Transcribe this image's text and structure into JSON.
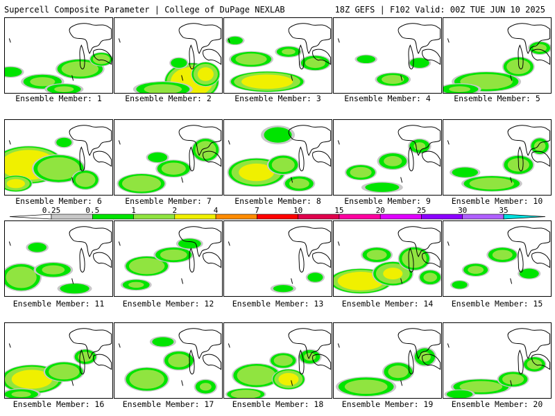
{
  "header": {
    "left": "Supercell Composite Parameter | College of DuPage NEXLAB",
    "right": "18Z GEFS | F102 Valid: 00Z TUE JUN 10 2025"
  },
  "members": [
    {
      "label": "Ensemble Member: 1",
      "sig": [
        [
          0.05,
          0.72,
          14,
          6,
          0.9
        ],
        [
          0.35,
          0.85,
          22,
          8,
          1.1
        ],
        [
          0.7,
          0.68,
          24,
          10,
          1.6
        ],
        [
          0.9,
          0.55,
          12,
          7,
          1.4
        ],
        [
          0.55,
          0.95,
          20,
          6,
          1.0
        ]
      ]
    },
    {
      "label": "Ensemble Member: 2",
      "sig": [
        [
          0.72,
          0.85,
          26,
          18,
          3.6
        ],
        [
          0.45,
          0.95,
          30,
          8,
          1.2
        ],
        [
          0.85,
          0.75,
          14,
          12,
          2.2
        ],
        [
          0.6,
          0.6,
          10,
          6,
          0.9
        ]
      ]
    },
    {
      "label": "Ensemble Member: 3",
      "sig": [
        [
          0.4,
          0.85,
          36,
          10,
          2.8
        ],
        [
          0.25,
          0.55,
          22,
          8,
          1.4
        ],
        [
          0.6,
          0.45,
          14,
          6,
          1.0
        ],
        [
          0.85,
          0.6,
          16,
          8,
          1.2
        ],
        [
          0.1,
          0.3,
          10,
          5,
          0.8
        ]
      ]
    },
    {
      "label": "Ensemble Member: 4",
      "sig": [
        [
          0.55,
          0.82,
          18,
          7,
          1.2
        ],
        [
          0.3,
          0.55,
          12,
          5,
          0.8
        ],
        [
          0.8,
          0.6,
          12,
          6,
          0.9
        ]
      ]
    },
    {
      "label": "Ensemble Member: 5",
      "sig": [
        [
          0.4,
          0.85,
          34,
          10,
          1.6
        ],
        [
          0.7,
          0.65,
          16,
          10,
          1.5
        ],
        [
          0.9,
          0.4,
          12,
          7,
          1.1
        ],
        [
          0.15,
          0.95,
          22,
          6,
          1.0
        ]
      ]
    },
    {
      "label": "Ensemble Member: 6",
      "sig": [
        [
          0.22,
          0.6,
          34,
          18,
          3.8
        ],
        [
          0.5,
          0.65,
          26,
          14,
          1.8
        ],
        [
          0.75,
          0.8,
          14,
          10,
          1.4
        ],
        [
          0.1,
          0.85,
          16,
          8,
          2.2
        ],
        [
          0.55,
          0.3,
          10,
          6,
          0.8
        ]
      ]
    },
    {
      "label": "Ensemble Member: 7",
      "sig": [
        [
          0.25,
          0.85,
          24,
          10,
          1.8
        ],
        [
          0.55,
          0.65,
          18,
          9,
          1.3
        ],
        [
          0.85,
          0.4,
          14,
          12,
          1.5
        ],
        [
          0.4,
          0.5,
          12,
          6,
          0.9
        ]
      ]
    },
    {
      "label": "Ensemble Member: 8",
      "sig": [
        [
          0.3,
          0.7,
          28,
          14,
          2.4
        ],
        [
          0.55,
          0.6,
          16,
          10,
          1.4
        ],
        [
          0.7,
          0.85,
          16,
          8,
          1.2
        ],
        [
          0.5,
          0.2,
          18,
          10,
          0.8
        ]
      ]
    },
    {
      "label": "Ensemble Member: 9",
      "sig": [
        [
          0.25,
          0.7,
          16,
          8,
          1.3
        ],
        [
          0.55,
          0.55,
          16,
          9,
          1.1
        ],
        [
          0.8,
          0.35,
          12,
          8,
          1.0
        ],
        [
          0.45,
          0.9,
          22,
          6,
          0.8
        ]
      ]
    },
    {
      "label": "Ensemble Member: 10",
      "sig": [
        [
          0.45,
          0.85,
          30,
          8,
          1.5
        ],
        [
          0.7,
          0.6,
          16,
          10,
          1.3
        ],
        [
          0.9,
          0.35,
          10,
          9,
          1.1
        ],
        [
          0.2,
          0.7,
          16,
          6,
          0.9
        ]
      ]
    },
    {
      "label": "Ensemble Member: 11",
      "sig": [
        [
          0.15,
          0.75,
          20,
          14,
          1.6
        ],
        [
          0.45,
          0.65,
          20,
          8,
          1.1
        ],
        [
          0.65,
          0.9,
          18,
          6,
          0.9
        ],
        [
          0.3,
          0.35,
          12,
          6,
          0.8
        ]
      ]
    },
    {
      "label": "Ensemble Member: 12",
      "sig": [
        [
          0.3,
          0.6,
          22,
          10,
          1.8
        ],
        [
          0.55,
          0.45,
          20,
          8,
          1.3
        ],
        [
          0.2,
          0.85,
          16,
          6,
          1.0
        ],
        [
          0.7,
          0.3,
          14,
          6,
          0.9
        ]
      ]
    },
    {
      "label": "Ensemble Member: 13",
      "sig": [
        [
          0.55,
          0.9,
          14,
          5,
          0.7
        ],
        [
          0.85,
          0.75,
          10,
          6,
          0.8
        ]
      ]
    },
    {
      "label": "Ensemble Member: 14",
      "sig": [
        [
          0.25,
          0.8,
          30,
          12,
          3.2
        ],
        [
          0.55,
          0.7,
          20,
          12,
          2.0
        ],
        [
          0.75,
          0.5,
          16,
          12,
          1.6
        ],
        [
          0.4,
          0.45,
          16,
          8,
          1.2
        ],
        [
          0.9,
          0.75,
          12,
          8,
          1.1
        ]
      ]
    },
    {
      "label": "Ensemble Member: 15",
      "sig": [
        [
          0.55,
          0.45,
          16,
          8,
          1.2
        ],
        [
          0.3,
          0.65,
          14,
          7,
          1.1
        ],
        [
          0.15,
          0.85,
          10,
          5,
          0.8
        ],
        [
          0.8,
          0.7,
          12,
          6,
          0.9
        ]
      ]
    },
    {
      "label": "Ensemble Member: 16",
      "sig": [
        [
          0.25,
          0.75,
          30,
          14,
          2.6
        ],
        [
          0.55,
          0.65,
          20,
          10,
          1.6
        ],
        [
          0.75,
          0.45,
          12,
          8,
          1.2
        ],
        [
          0.15,
          0.95,
          20,
          6,
          1.0
        ]
      ]
    },
    {
      "label": "Ensemble Member: 17",
      "sig": [
        [
          0.3,
          0.75,
          22,
          12,
          1.7
        ],
        [
          0.6,
          0.5,
          16,
          10,
          1.3
        ],
        [
          0.85,
          0.85,
          12,
          8,
          1.0
        ],
        [
          0.45,
          0.25,
          14,
          6,
          0.8
        ]
      ]
    },
    {
      "label": "Ensemble Member: 18",
      "sig": [
        [
          0.3,
          0.7,
          24,
          12,
          1.8
        ],
        [
          0.6,
          0.75,
          16,
          10,
          2.4
        ],
        [
          0.55,
          0.5,
          14,
          8,
          1.3
        ],
        [
          0.2,
          0.95,
          20,
          6,
          1.5
        ],
        [
          0.8,
          0.45,
          12,
          8,
          1.0
        ]
      ]
    },
    {
      "label": "Ensemble Member: 19",
      "sig": [
        [
          0.3,
          0.85,
          30,
          10,
          1.4
        ],
        [
          0.6,
          0.65,
          16,
          10,
          1.2
        ],
        [
          0.85,
          0.45,
          12,
          10,
          1.0
        ]
      ]
    },
    {
      "label": "Ensemble Member: 20",
      "sig": [
        [
          0.35,
          0.85,
          30,
          8,
          1.4
        ],
        [
          0.65,
          0.75,
          16,
          8,
          1.3
        ],
        [
          0.85,
          0.55,
          12,
          8,
          1.2
        ],
        [
          0.15,
          0.95,
          16,
          5,
          0.9
        ]
      ]
    }
  ],
  "colorbar": {
    "tick_labels": [
      "0.25",
      "0.5",
      "1",
      "2",
      "4",
      "7",
      "10",
      "15",
      "20",
      "25",
      "30",
      "35"
    ],
    "colors": [
      "#c8c8c8",
      "#00e400",
      "#90e440",
      "#f0f000",
      "#ff8c00",
      "#ff0000",
      "#e0004c",
      "#ff00a0",
      "#e000ff",
      "#8c00ff",
      "#b060ff",
      "#00e0e0"
    ]
  }
}
